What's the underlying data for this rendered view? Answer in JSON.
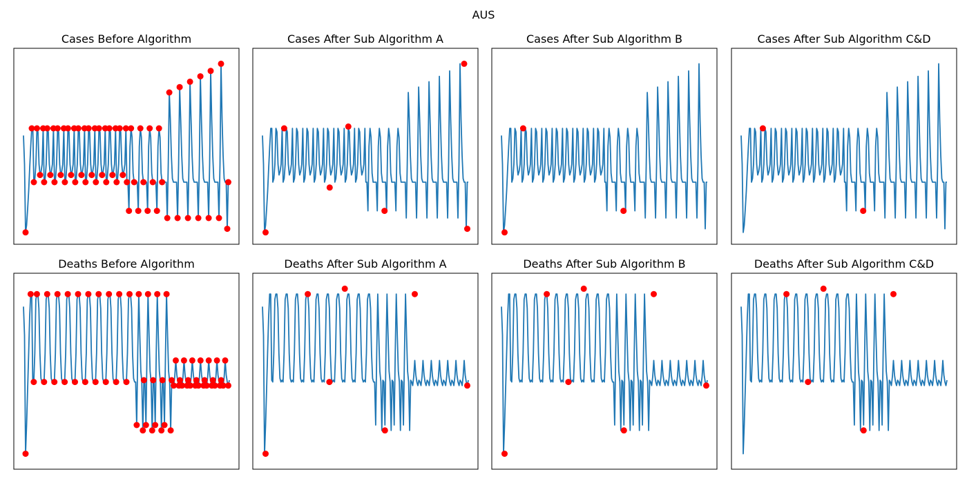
{
  "suptitle": "AUS",
  "colors": {
    "line": "#1f77b4",
    "marker": "#ff0000"
  },
  "chart_data": [
    {
      "type": "line",
      "title": "Cases Before Algorithm",
      "axes_visible": false,
      "series_shape": "cases",
      "markers": "all-turning-points"
    },
    {
      "type": "line",
      "title": "Cases After Sub Algorithm A",
      "axes_visible": false,
      "series_shape": "cases",
      "marker_points": [
        [
          2,
          0.02
        ],
        [
          14,
          0.6
        ],
        [
          44,
          0.27
        ],
        [
          56,
          0.61
        ],
        [
          80,
          0.14
        ],
        [
          132,
          0.96
        ],
        [
          134,
          0.04
        ]
      ]
    },
    {
      "type": "line",
      "title": "Cases After Sub Algorithm B",
      "axes_visible": false,
      "series_shape": "cases",
      "marker_points": [
        [
          2,
          0.02
        ],
        [
          14,
          0.6
        ],
        [
          80,
          0.14
        ]
      ]
    },
    {
      "type": "line",
      "title": "Cases After Sub Algorithm C&D",
      "axes_visible": false,
      "series_shape": "cases",
      "marker_points": [
        [
          14,
          0.6
        ],
        [
          80,
          0.14
        ]
      ]
    },
    {
      "type": "line",
      "title": "Deaths Before Algorithm",
      "axes_visible": false,
      "series_shape": "deaths",
      "markers": "all-turning-points"
    },
    {
      "type": "line",
      "title": "Deaths After Sub Algorithm A",
      "axes_visible": false,
      "series_shape": "deaths",
      "marker_points": [
        [
          2,
          0.04
        ],
        [
          30,
          0.93
        ],
        [
          44,
          0.44
        ],
        [
          54,
          0.96
        ],
        [
          80,
          0.17
        ],
        [
          100,
          0.93
        ],
        [
          134,
          0.42
        ]
      ]
    },
    {
      "type": "line",
      "title": "Deaths After Sub Algorithm B",
      "axes_visible": false,
      "series_shape": "deaths",
      "marker_points": [
        [
          2,
          0.04
        ],
        [
          30,
          0.93
        ],
        [
          44,
          0.44
        ],
        [
          54,
          0.96
        ],
        [
          80,
          0.17
        ],
        [
          100,
          0.93
        ],
        [
          134,
          0.42
        ]
      ]
    },
    {
      "type": "line",
      "title": "Deaths After Sub Algorithm C&D",
      "axes_visible": false,
      "series_shape": "deaths",
      "marker_points": [
        [
          30,
          0.93
        ],
        [
          44,
          0.44
        ],
        [
          54,
          0.96
        ],
        [
          80,
          0.17
        ],
        [
          100,
          0.93
        ]
      ]
    }
  ]
}
